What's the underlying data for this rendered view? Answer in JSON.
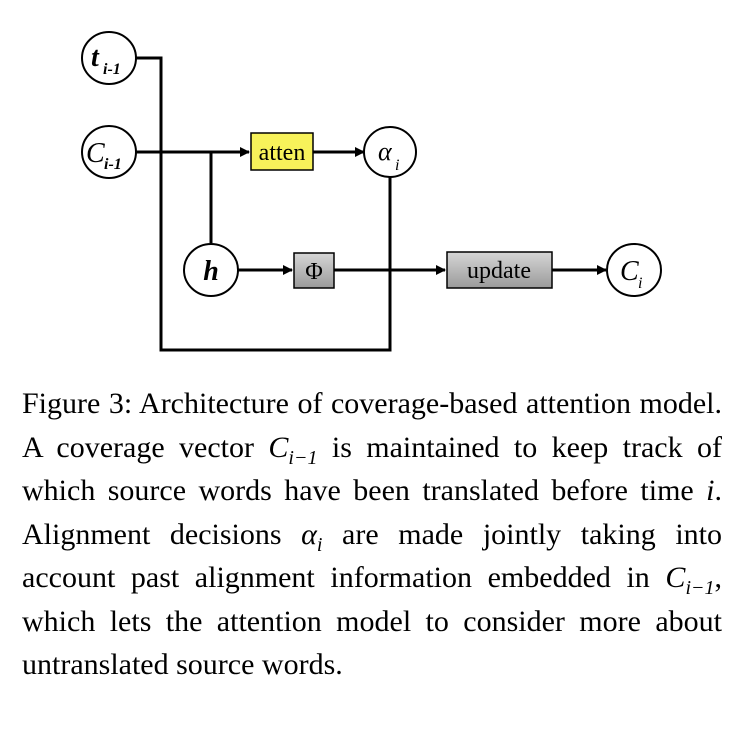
{
  "diagram": {
    "nodes": {
      "t_prev": {
        "base": "t",
        "sub": "i-1"
      },
      "c_prev": {
        "base": "C",
        "sub": "i-1"
      },
      "alpha": {
        "base": "α",
        "sub": "i"
      },
      "h": {
        "base": "h"
      },
      "c_new": {
        "base": "C",
        "sub": "i"
      }
    },
    "boxes": {
      "atten": {
        "label": "atten",
        "fill": "#f7f25a"
      },
      "phi": {
        "label": "Φ",
        "fill": "#a9a9a9"
      },
      "update": {
        "label": "update",
        "fill": "#a9a9a9"
      }
    }
  },
  "caption": {
    "label": "Figure 3:",
    "p1": " Architecture of coverage-based attention model.  A coverage vector ",
    "sym1": {
      "base": "C",
      "sub": "i−1"
    },
    "p2": " is maintained to keep track of which source words have been translated before time ",
    "sym2": "i",
    "p3": ".  Alignment decisions ",
    "sym3": {
      "base": "α",
      "sub": "i"
    },
    "p4": " are made jointly taking into account past alignment information embedded in ",
    "sym4": {
      "base": "C",
      "sub": "i−1"
    },
    "p5": ", which lets the attention model to consider more about untranslated source words."
  }
}
